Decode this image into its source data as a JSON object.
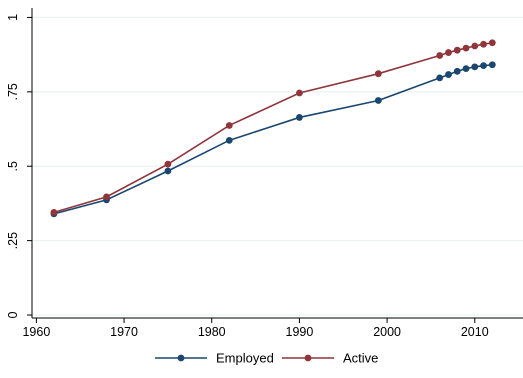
{
  "chart_data": {
    "type": "line",
    "x": [
      1962,
      1968,
      1975,
      1982,
      1990,
      1999,
      2006,
      2007,
      2008,
      2009,
      2010,
      2011,
      2012
    ],
    "series": [
      {
        "name": "Employed",
        "color": "#1a476f",
        "values": [
          0.34,
          0.387,
          0.484,
          0.587,
          0.664,
          0.721,
          0.797,
          0.808,
          0.819,
          0.828,
          0.834,
          0.838,
          0.841
        ]
      },
      {
        "name": "Active",
        "color": "#90353b",
        "values": [
          0.345,
          0.397,
          0.507,
          0.637,
          0.746,
          0.811,
          0.872,
          0.882,
          0.89,
          0.897,
          0.904,
          0.91,
          0.915
        ]
      }
    ],
    "xlim": [
      1959.5,
      2015.5
    ],
    "ylim": [
      -0.01,
      1.025
    ],
    "xticks": [
      1960,
      1970,
      1980,
      1990,
      2000,
      2010
    ],
    "xtick_labels": [
      "1960",
      "1970",
      "1980",
      "1990",
      "2000",
      "2010"
    ],
    "yticks": [
      0,
      0.25,
      0.5,
      0.75,
      1
    ],
    "ytick_labels": [
      "0",
      ".25",
      ".5",
      ".75",
      "1"
    ],
    "grid": true,
    "legend_position": "bottom",
    "background": "#ffffff",
    "grid_color": "#eaf2f3",
    "axis_color": "#000000"
  }
}
